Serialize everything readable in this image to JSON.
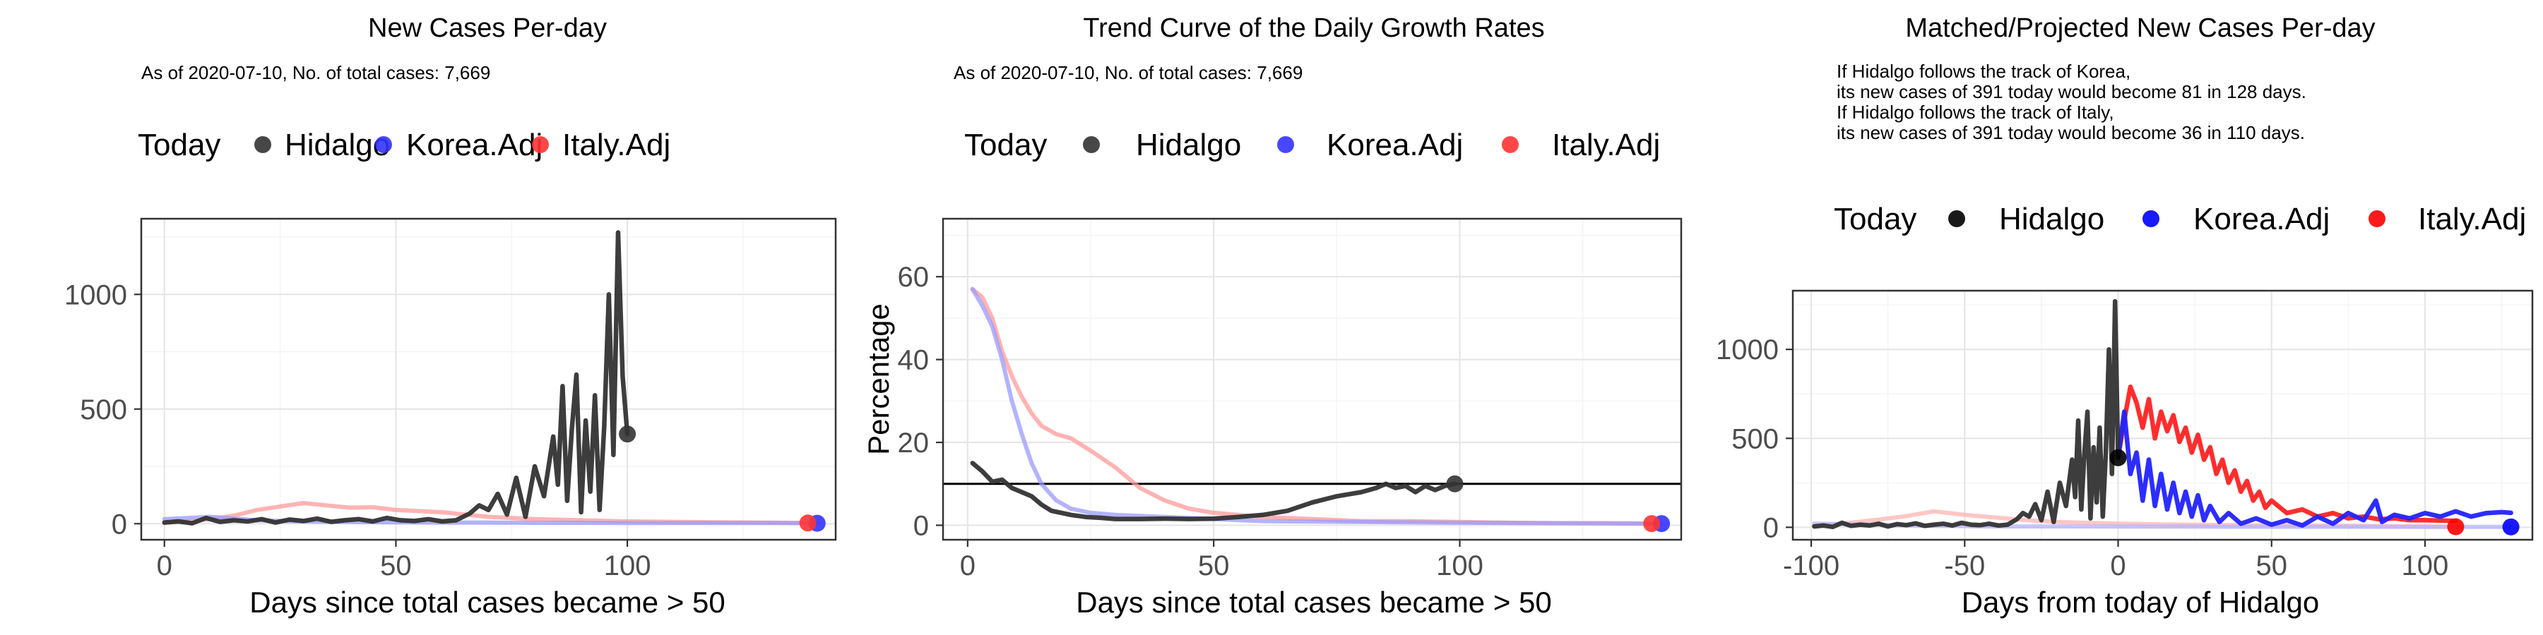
{
  "chart_data": [
    {
      "type": "line",
      "title": "New Cases Per-day",
      "subtitle_lines": [
        "As of 2020-07-10, No. of total cases: 7,669"
      ],
      "xlabel": "Days since total cases became > 50",
      "ylabel": "",
      "xlim": [
        -5,
        145
      ],
      "ylim": [
        -70,
        1330
      ],
      "x_ticks": [
        0,
        50,
        100
      ],
      "x_tick_labels": [
        "0",
        "50",
        "100"
      ],
      "y_ticks": [
        0,
        500,
        1000
      ],
      "y_tick_labels": [
        "0",
        "500",
        "1000"
      ],
      "grid": true,
      "legend": {
        "position": "top",
        "title": "Today",
        "entries": [
          {
            "label": "Hidalgo",
            "color": "#333333"
          },
          {
            "label": "Korea.Adj",
            "color": "#3333ff"
          },
          {
            "label": "Italy.Adj",
            "color": "#ff3333"
          }
        ]
      },
      "series": [
        {
          "name": "Italy.Adj",
          "color": "#ff9999",
          "x": [
            0,
            5,
            10,
            15,
            20,
            25,
            30,
            35,
            40,
            45,
            50,
            55,
            60,
            65,
            70,
            75,
            80,
            90,
            100,
            110,
            120,
            130,
            139
          ],
          "y": [
            5,
            10,
            20,
            35,
            60,
            75,
            90,
            80,
            70,
            72,
            60,
            55,
            50,
            40,
            30,
            25,
            20,
            15,
            10,
            8,
            6,
            5,
            3
          ]
        },
        {
          "name": "Korea.Adj",
          "color": "#9999ff",
          "x": [
            0,
            10,
            20,
            30,
            40,
            50,
            60,
            70,
            80,
            90,
            100,
            110,
            120,
            130,
            141
          ],
          "y": [
            20,
            30,
            15,
            10,
            8,
            6,
            5,
            5,
            4,
            4,
            3,
            3,
            3,
            3,
            2
          ]
        },
        {
          "name": "Hidalgo",
          "color": "#333333",
          "x": [
            0,
            3,
            6,
            9,
            12,
            15,
            18,
            21,
            24,
            27,
            30,
            33,
            36,
            39,
            42,
            45,
            48,
            51,
            54,
            57,
            60,
            63,
            66,
            68,
            70,
            72,
            74,
            76,
            78,
            80,
            82,
            84,
            85,
            86,
            87,
            88,
            89,
            90,
            91,
            92,
            93,
            94,
            95,
            96,
            97,
            98,
            99,
            100
          ],
          "y": [
            5,
            10,
            2,
            25,
            8,
            15,
            10,
            20,
            5,
            18,
            12,
            22,
            8,
            15,
            20,
            10,
            25,
            15,
            12,
            20,
            10,
            15,
            45,
            80,
            60,
            130,
            40,
            200,
            30,
            250,
            120,
            380,
            170,
            600,
            100,
            410,
            650,
            50,
            450,
            140,
            560,
            60,
            420,
            1000,
            300,
            1270,
            640,
            391
          ]
        }
      ],
      "today_points": [
        {
          "series": "Hidalgo",
          "x": 100,
          "y": 391,
          "color": "#333333"
        },
        {
          "series": "Korea.Adj",
          "x": 141,
          "y": 2,
          "color": "#3333ff"
        },
        {
          "series": "Italy.Adj",
          "x": 139,
          "y": 3,
          "color": "#ff3333"
        }
      ]
    },
    {
      "type": "line",
      "title": "Trend Curve of the Daily Growth Rates",
      "subtitle_lines": [
        "As of 2020-07-10, No. of total cases: 7,669"
      ],
      "xlabel": "Days since total cases became > 50",
      "ylabel": "Percentage",
      "xlim": [
        -5,
        145
      ],
      "ylim": [
        -3.5,
        74
      ],
      "x_ticks": [
        0,
        50,
        100
      ],
      "x_tick_labels": [
        "0",
        "50",
        "100"
      ],
      "y_ticks": [
        0,
        20,
        40,
        60
      ],
      "y_tick_labels": [
        "0",
        "20",
        "40",
        "60"
      ],
      "grid": true,
      "hline": 10,
      "legend": {
        "position": "top",
        "title": "Today",
        "entries": [
          {
            "label": "Hidalgo",
            "color": "#333333"
          },
          {
            "label": "Korea.Adj",
            "color": "#3333ff"
          },
          {
            "label": "Italy.Adj",
            "color": "#ff3333"
          }
        ]
      },
      "series": [
        {
          "name": "Italy.Adj",
          "color": "#ff9999",
          "x": [
            1,
            3,
            5,
            7,
            9,
            11,
            13,
            15,
            18,
            21,
            25,
            30,
            35,
            40,
            45,
            50,
            55,
            60,
            70,
            80,
            90,
            100,
            110,
            120,
            130,
            139
          ],
          "y": [
            57,
            55,
            50,
            42,
            36,
            31,
            27,
            24,
            22,
            21,
            18,
            14,
            9,
            6,
            4,
            3,
            2.5,
            2,
            1.5,
            1,
            1,
            0.8,
            0.6,
            0.5,
            0.5,
            0.4
          ]
        },
        {
          "name": "Korea.Adj",
          "color": "#9999ff",
          "x": [
            1,
            3,
            5,
            7,
            9,
            11,
            13,
            15,
            18,
            21,
            25,
            30,
            40,
            50,
            60,
            80,
            100,
            120,
            141
          ],
          "y": [
            57,
            53,
            48,
            40,
            30,
            22,
            15,
            10,
            6,
            4,
            3,
            2.5,
            2,
            1.5,
            1,
            0.8,
            0.6,
            0.5,
            0.4
          ]
        },
        {
          "name": "Hidalgo",
          "color": "#333333",
          "x": [
            1,
            3,
            5,
            7,
            9,
            11,
            13,
            15,
            17,
            19,
            21,
            24,
            27,
            30,
            35,
            40,
            45,
            50,
            55,
            60,
            65,
            70,
            75,
            80,
            83,
            85,
            87,
            89,
            91,
            93,
            95,
            97,
            99
          ],
          "y": [
            15,
            13,
            10.5,
            11,
            9,
            8,
            7,
            5,
            3.5,
            3,
            2.5,
            2,
            1.8,
            1.5,
            1.5,
            1.6,
            1.5,
            1.6,
            2,
            2.5,
            3.5,
            5.5,
            7,
            8,
            9,
            10,
            9,
            9.5,
            8,
            9.5,
            8.5,
            9.5,
            10
          ]
        }
      ],
      "today_points": [
        {
          "series": "Hidalgo",
          "x": 99,
          "y": 10,
          "color": "#333333"
        },
        {
          "series": "Korea.Adj",
          "x": 141,
          "y": 0.4,
          "color": "#3333ff"
        },
        {
          "series": "Italy.Adj",
          "x": 139,
          "y": 0.4,
          "color": "#ff3333"
        }
      ]
    },
    {
      "type": "line",
      "title": "Matched/Projected New Cases Per-day",
      "subtitle_lines": [
        "If Hidalgo follows the track of Korea,",
        "its new cases of 391 today would become 81 in 128 days.",
        "If Hidalgo follows the track of Italy,",
        "its new cases of 391 today would become 36 in 110 days."
      ],
      "xlabel": "Days from today of Hidalgo",
      "ylabel": "",
      "xlim": [
        -106,
        135
      ],
      "ylim": [
        -70,
        1330
      ],
      "x_ticks": [
        -100,
        -50,
        0,
        50,
        100
      ],
      "x_tick_labels": [
        "-100",
        "-50",
        "0",
        "50",
        "100"
      ],
      "y_ticks": [
        0,
        500,
        1000
      ],
      "y_tick_labels": [
        "0",
        "500",
        "1000"
      ],
      "grid": true,
      "legend": {
        "position": "top",
        "title": "Today",
        "entries": [
          {
            "label": "Hidalgo",
            "color": "#000000"
          },
          {
            "label": "Korea.Adj",
            "color": "#0000ff"
          },
          {
            "label": "Italy.Adj",
            "color": "#ff0000"
          }
        ]
      },
      "series": [
        {
          "name": "Italy.Adj (faint)",
          "color": "#ffb3b3",
          "x": [
            -99,
            -90,
            -80,
            -70,
            -60,
            -50,
            -40,
            -30,
            -20,
            -10,
            0,
            20,
            40,
            60,
            80,
            100,
            110
          ],
          "y": [
            10,
            20,
            40,
            60,
            90,
            70,
            55,
            40,
            30,
            25,
            20,
            15,
            12,
            10,
            8,
            5,
            3
          ]
        },
        {
          "name": "Korea.Adj (faint)",
          "color": "#b3b3ff",
          "x": [
            -99,
            -80,
            -60,
            -40,
            -20,
            0,
            20,
            40,
            60,
            80,
            100,
            128
          ],
          "y": [
            20,
            15,
            8,
            5,
            5,
            4,
            4,
            3,
            3,
            3,
            2,
            2
          ]
        },
        {
          "name": "Italy.Adj",
          "color": "#ff2222",
          "x": [
            0,
            2,
            4,
            6,
            8,
            10,
            12,
            14,
            16,
            18,
            20,
            22,
            24,
            26,
            28,
            30,
            32,
            34,
            36,
            38,
            40,
            42,
            44,
            46,
            48,
            50,
            55,
            60,
            65,
            70,
            75,
            80,
            85,
            90,
            95,
            100,
            105,
            110
          ],
          "y": [
            391,
            600,
            790,
            700,
            560,
            720,
            500,
            650,
            540,
            630,
            480,
            560,
            420,
            520,
            380,
            450,
            300,
            380,
            250,
            320,
            200,
            260,
            150,
            200,
            110,
            150,
            80,
            100,
            60,
            80,
            50,
            60,
            45,
            50,
            40,
            40,
            38,
            36
          ]
        },
        {
          "name": "Korea.Adj",
          "color": "#2222ff",
          "x": [
            0,
            2,
            4,
            6,
            8,
            10,
            12,
            14,
            16,
            18,
            20,
            22,
            24,
            26,
            28,
            30,
            33,
            36,
            40,
            45,
            50,
            55,
            60,
            65,
            70,
            75,
            80,
            84,
            86,
            90,
            95,
            100,
            105,
            110,
            115,
            120,
            125,
            128
          ],
          "y": [
            391,
            650,
            300,
            420,
            150,
            380,
            120,
            300,
            100,
            250,
            80,
            200,
            60,
            180,
            40,
            120,
            30,
            80,
            20,
            50,
            15,
            40,
            10,
            60,
            20,
            80,
            40,
            150,
            30,
            70,
            50,
            80,
            60,
            90,
            60,
            80,
            85,
            81
          ]
        },
        {
          "name": "Hidalgo",
          "color": "#333333",
          "x": [
            -99,
            -96,
            -93,
            -90,
            -87,
            -84,
            -81,
            -78,
            -75,
            -72,
            -69,
            -66,
            -63,
            -60,
            -57,
            -54,
            -51,
            -48,
            -45,
            -42,
            -39,
            -36,
            -33,
            -31,
            -29,
            -27,
            -25,
            -23,
            -21,
            -19,
            -17,
            -15,
            -14,
            -13,
            -12,
            -11,
            -10,
            -9,
            -8,
            -7,
            -6,
            -5,
            -4,
            -3,
            -2,
            -1,
            0
          ],
          "y": [
            5,
            10,
            2,
            25,
            8,
            15,
            10,
            20,
            5,
            18,
            12,
            22,
            8,
            15,
            20,
            10,
            25,
            15,
            12,
            20,
            10,
            15,
            45,
            80,
            60,
            130,
            40,
            200,
            30,
            250,
            120,
            380,
            170,
            600,
            100,
            410,
            650,
            50,
            450,
            140,
            560,
            60,
            420,
            1000,
            300,
            1270,
            391
          ]
        }
      ],
      "today_points": [
        {
          "series": "Hidalgo",
          "x": 0,
          "y": 391,
          "color": "#000000"
        },
        {
          "series": "Korea.Adj",
          "x": 128,
          "y": 2,
          "color": "#0000ff"
        },
        {
          "series": "Italy.Adj",
          "x": 110,
          "y": 3,
          "color": "#ff0000"
        }
      ]
    }
  ]
}
